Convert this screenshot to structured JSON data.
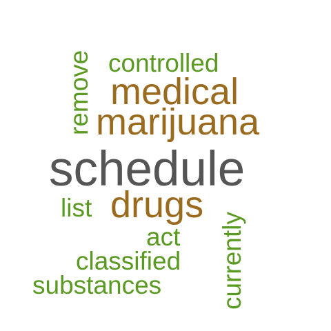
{
  "colors": {
    "grey": "#555555",
    "brown": "#9a6a1e",
    "green": "#5a9a22"
  },
  "words": {
    "schedule": "schedule",
    "marijuana": "marijuana",
    "medical": "medical",
    "drugs": "drugs",
    "controlled": "controlled",
    "remove": "remove",
    "list": "list",
    "act": "act",
    "classified": "classified",
    "substances": "substances",
    "currently": "currently"
  }
}
